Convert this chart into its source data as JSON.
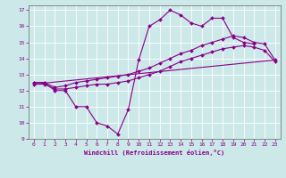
{
  "xlabel": "Windchill (Refroidissement éolien,°C)",
  "bg_color": "#cce8e8",
  "line_color": "#880088",
  "xlim": [
    -0.5,
    23.5
  ],
  "ylim": [
    9,
    17.3
  ],
  "xticks": [
    0,
    1,
    2,
    3,
    4,
    5,
    6,
    7,
    8,
    9,
    10,
    11,
    12,
    13,
    14,
    15,
    16,
    17,
    18,
    19,
    20,
    21,
    22,
    23
  ],
  "yticks": [
    9,
    10,
    11,
    12,
    13,
    14,
    15,
    16,
    17
  ],
  "curves": [
    {
      "x": [
        0,
        1,
        2,
        3,
        4,
        5,
        6,
        7,
        8,
        9,
        10,
        11,
        12,
        13,
        14,
        15,
        16,
        17,
        18,
        19,
        20,
        21
      ],
      "y": [
        12.5,
        12.5,
        12.0,
        12.0,
        11.0,
        11.0,
        10.0,
        9.8,
        9.3,
        10.8,
        13.9,
        16.0,
        16.4,
        17.0,
        16.7,
        16.2,
        16.0,
        16.5,
        16.5,
        15.3,
        15.0,
        14.9
      ]
    },
    {
      "x": [
        0,
        1,
        2,
        3,
        4,
        5,
        6,
        7,
        8,
        9,
        10,
        11,
        12,
        13,
        14,
        15,
        16,
        17,
        18,
        19,
        20,
        21,
        22,
        23
      ],
      "y": [
        12.5,
        12.5,
        12.2,
        12.3,
        12.5,
        12.6,
        12.7,
        12.8,
        12.9,
        13.0,
        13.2,
        13.4,
        13.7,
        14.0,
        14.3,
        14.5,
        14.8,
        15.0,
        15.2,
        15.4,
        15.3,
        15.0,
        14.9,
        13.9
      ]
    },
    {
      "x": [
        0,
        1,
        2,
        3,
        4,
        5,
        6,
        7,
        8,
        9,
        10,
        11,
        12,
        13,
        14,
        15,
        16,
        17,
        18,
        19,
        20,
        21,
        22,
        23
      ],
      "y": [
        12.4,
        12.4,
        12.1,
        12.1,
        12.2,
        12.3,
        12.4,
        12.4,
        12.5,
        12.6,
        12.8,
        13.0,
        13.2,
        13.5,
        13.8,
        14.0,
        14.2,
        14.4,
        14.6,
        14.7,
        14.8,
        14.7,
        14.5,
        13.8
      ]
    },
    {
      "x": [
        0,
        23
      ],
      "y": [
        12.4,
        13.9
      ]
    }
  ]
}
